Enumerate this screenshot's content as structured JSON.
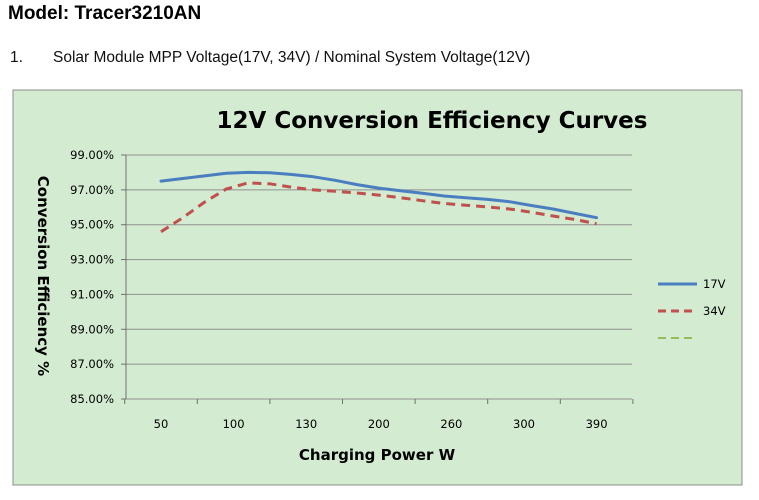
{
  "header": {
    "model_title": "Model: Tracer3210AN",
    "section_number": "1.",
    "section_text": "Solar Module MPP Voltage(17V, 34V) / Nominal System Voltage(12V)"
  },
  "colors": {
    "chart_background": "#d3ebd0",
    "chart_border": "#8c8c8c",
    "gridline": "#909090",
    "series_17v": "#4a7ec0",
    "series_34v": "#c0504d",
    "series_third": "#9bbb59"
  },
  "chart_data": {
    "type": "line",
    "title": "12V Conversion Efficiency Curves",
    "xlabel": "Charging Power W",
    "ylabel": "Conversion Efficiency %",
    "categories": [
      "50",
      "100",
      "130",
      "200",
      "260",
      "300",
      "390"
    ],
    "ylim": [
      85,
      99
    ],
    "yticks": [
      "99.00%",
      "97.00%",
      "95.00%",
      "93.00%",
      "91.00%",
      "89.00%",
      "87.00%",
      "85.00%"
    ],
    "grid": true,
    "legend_position": "right",
    "series": [
      {
        "name": "17V",
        "style": "solid",
        "x": [
          0,
          0.3,
          0.6,
          0.9,
          1.2,
          1.5,
          1.8,
          2.1,
          2.4,
          2.7,
          3.0,
          3.3,
          3.6,
          3.9,
          4.2,
          4.5,
          4.8,
          5.1,
          5.4,
          5.7,
          6.0
        ],
        "values": [
          97.5,
          97.65,
          97.8,
          97.95,
          98.0,
          97.98,
          97.88,
          97.75,
          97.55,
          97.3,
          97.1,
          96.95,
          96.8,
          96.65,
          96.55,
          96.45,
          96.32,
          96.1,
          95.9,
          95.65,
          95.4
        ]
      },
      {
        "name": "34V",
        "style": "dashed",
        "x": [
          0,
          0.3,
          0.6,
          0.9,
          1.2,
          1.5,
          1.8,
          2.1,
          2.4,
          2.7,
          3.0,
          3.3,
          3.6,
          3.9,
          4.2,
          4.5,
          4.8,
          5.1,
          5.4,
          5.7,
          6.0
        ],
        "values": [
          94.6,
          95.4,
          96.3,
          97.05,
          97.4,
          97.35,
          97.15,
          97.0,
          96.92,
          96.82,
          96.7,
          96.55,
          96.38,
          96.22,
          96.12,
          96.02,
          95.9,
          95.72,
          95.5,
          95.3,
          95.05
        ]
      },
      {
        "name": "",
        "style": "dashed",
        "x": [],
        "values": []
      }
    ]
  }
}
